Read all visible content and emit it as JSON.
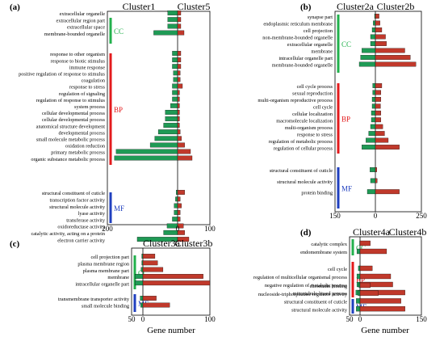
{
  "chart_data": [
    {
      "type": "bar",
      "panel": "(a)",
      "series": [
        {
          "name": "Cluster1"
        },
        {
          "name": "Cluster5"
        }
      ],
      "xlim_left": [
        200,
        0
      ],
      "xlim_right": [
        0,
        100
      ],
      "ticks": [
        "200",
        "0",
        "100"
      ],
      "colors": {
        "left": "#1f9a55",
        "right": "#c0392b"
      },
      "groups": [
        {
          "name": "CC",
          "color": "#22b14c",
          "categories": [
            "extracellular organelle",
            "extracellular region part",
            "extracellular space",
            "membrane-bounded organelle"
          ],
          "left": [
            28,
            28,
            28,
            68
          ],
          "right": [
            10,
            10,
            10,
            20
          ]
        },
        {
          "name": "BP",
          "color": "#e31a1c",
          "categories": [
            "response to other organism",
            "response to biotic stimulus",
            "immune response",
            "positive regulation of response to stimulus",
            "coagulation",
            "response to stress",
            "regulation of signaling",
            "regulation of response to stimulus",
            "system process",
            "cellular developmental process",
            "cellular developmental process",
            "anatomical structure development",
            "developmental process",
            "small molecule metabolic process",
            "oxidation reduction",
            "primary metabolic process",
            "organic substance metabolic process"
          ],
          "left": [
            15,
            15,
            15,
            12,
            12,
            15,
            15,
            15,
            20,
            35,
            35,
            40,
            55,
            65,
            78,
            175,
            180
          ],
          "right": [
            10,
            10,
            10,
            8,
            8,
            15,
            6,
            6,
            6,
            6,
            6,
            6,
            8,
            12,
            22,
            40,
            45
          ]
        },
        {
          "name": "MF",
          "color": "#1f3fbf",
          "categories": [
            "structural constituent of cuticle",
            "transcription factor activity",
            "structural molecule activity",
            "lyase activity",
            "transferase activity",
            "oxidoreductase activity",
            "catalytic activity, acting on a protein",
            "electron carrier activity"
          ],
          "left": [
            4,
            6,
            10,
            10,
            15,
            30,
            40,
            115
          ],
          "right": [
            22,
            8,
            12,
            8,
            8,
            18,
            22,
            35
          ]
        }
      ]
    },
    {
      "type": "bar",
      "panel": "(b)",
      "series": [
        {
          "name": "Cluster2a"
        },
        {
          "name": "Cluster2b"
        }
      ],
      "xlim_left": [
        150,
        0
      ],
      "xlim_right": [
        0,
        250
      ],
      "ticks": [
        "150",
        "0",
        "250"
      ],
      "colors": {
        "left": "#1f9a55",
        "right": "#c0392b"
      },
      "groups": [
        {
          "name": "CC",
          "color": "#22b14c",
          "categories": [
            "synapse part",
            "endoplasmic reticulum membrane",
            "cell projection",
            "non-membrane-bounded organelle",
            "extracellular organelle",
            "membrane",
            "intracellular organelle part",
            "membrane-bounded organelle"
          ],
          "left": [
            3,
            8,
            12,
            18,
            18,
            50,
            55,
            60
          ],
          "right": [
            20,
            25,
            35,
            55,
            60,
            160,
            190,
            220
          ]
        },
        {
          "name": "BP",
          "color": "#e31a1c",
          "categories": [
            "cell cycle process",
            "sexual reproduction",
            "multi-organism reproductive process",
            "cell cycle",
            "cellular localization",
            "macromolecule localization",
            "multi-organism process",
            "response to stress",
            "regulation of metabolic process",
            "regulation of cellular process"
          ],
          "left": [
            10,
            10,
            12,
            12,
            15,
            15,
            18,
            25,
            35,
            50
          ],
          "right": [
            35,
            30,
            30,
            28,
            30,
            30,
            40,
            50,
            70,
            130
          ]
        },
        {
          "name": "MF",
          "color": "#1f3fbf",
          "categories": [
            "structural constituent of cuticle",
            "structural molecule activity",
            "protein binding"
          ],
          "left": [
            20,
            18,
            30
          ],
          "right": [
            8,
            10,
            130
          ]
        }
      ]
    },
    {
      "type": "bar",
      "panel": "(c)",
      "series": [
        {
          "name": "Cluster3a"
        },
        {
          "name": "Cluster3b"
        }
      ],
      "xlim_left": [
        50,
        0
      ],
      "xlim_right": [
        0,
        100
      ],
      "ticks": [
        "50",
        "0",
        "100"
      ],
      "colors": {
        "left": "#1f9a55",
        "right": "#c0392b"
      },
      "groups": [
        {
          "name": "CC",
          "color": "#22b14c",
          "categories": [
            "cell projection part",
            "plasma membrane region",
            "plasma membrane part",
            "membrane",
            "intracellular organelle part"
          ],
          "left": [
            5,
            5,
            8,
            35,
            35
          ],
          "right": [
            18,
            22,
            30,
            90,
            100
          ]
        },
        {
          "name": "MF",
          "color": "#1f3fbf",
          "categories": [
            "transmembrane transporter activity",
            "small molecule binding"
          ],
          "left": [
            12,
            10
          ],
          "right": [
            20,
            40
          ]
        }
      ]
    },
    {
      "type": "bar",
      "panel": "(d)",
      "series": [
        {
          "name": "Cluster4a"
        },
        {
          "name": "Cluster4b"
        }
      ],
      "xlim_left": [
        50,
        0
      ],
      "xlim_right": [
        0,
        150
      ],
      "ticks": [
        "50",
        "0",
        "150"
      ],
      "xlabel": "Gene number",
      "colors": {
        "left": "#1f9a55",
        "right": "#c0392b"
      },
      "groups": [
        {
          "name": "CC",
          "color": "#22b14c",
          "categories": [
            "catalytic complex",
            "endomembrane system"
          ],
          "left": [
            2,
            15
          ],
          "right": [
            25,
            65
          ]
        },
        {
          "name": "BP",
          "color": "#e31a1c",
          "categories": [
            "cell cycle",
            "regulation of multicellular organismal process",
            "negative regulation of metabolic process",
            "microtubule-based process"
          ],
          "left": [
            8,
            15,
            15,
            20
          ],
          "right": [
            30,
            75,
            80,
            110
          ]
        },
        {
          "name": "MF",
          "color": "#1f3fbf",
          "categories": [
            "chromatin binding",
            "nucleoside-triphosphatase regulator activity",
            "structural constituent of cuticle",
            "structural molecule activity"
          ],
          "left": [
            5,
            10,
            18,
            18
          ],
          "right": [
            25,
            45,
            100,
            110
          ]
        }
      ]
    }
  ],
  "shared_xlabel": "Gene number"
}
